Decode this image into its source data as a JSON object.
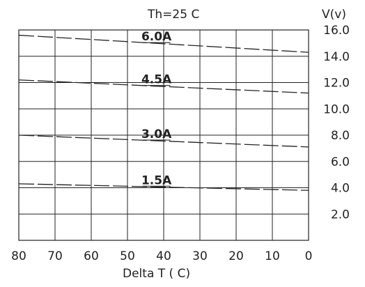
{
  "chart_data": {
    "type": "line",
    "title": "Th=25 C",
    "xlabel": "Delta  T ( C)",
    "ylabel": "V(v)",
    "x_reversed": true,
    "xlim": [
      80,
      0
    ],
    "ylim": [
      0,
      16.0
    ],
    "x_ticks": [
      "80",
      "70",
      "60",
      "50",
      "40",
      "30",
      "20",
      "10",
      "0"
    ],
    "y_ticks": [
      "2.0",
      "4.0",
      "6.0",
      "8.0",
      "10.0",
      "12.0",
      "14.0",
      "16.0"
    ],
    "grid": true,
    "series": [
      {
        "name": "6.0A",
        "x": [
          80,
          0
        ],
        "y": [
          15.6,
          14.3
        ]
      },
      {
        "name": "4.5A",
        "x": [
          80,
          0
        ],
        "y": [
          12.2,
          11.2
        ]
      },
      {
        "name": "3.0A",
        "x": [
          80,
          0
        ],
        "y": [
          8.0,
          7.1
        ]
      },
      {
        "name": "1.5A",
        "x": [
          80,
          0
        ],
        "y": [
          4.3,
          3.8
        ]
      }
    ],
    "colors": {
      "line": "#222222",
      "grid": "#222222"
    }
  }
}
